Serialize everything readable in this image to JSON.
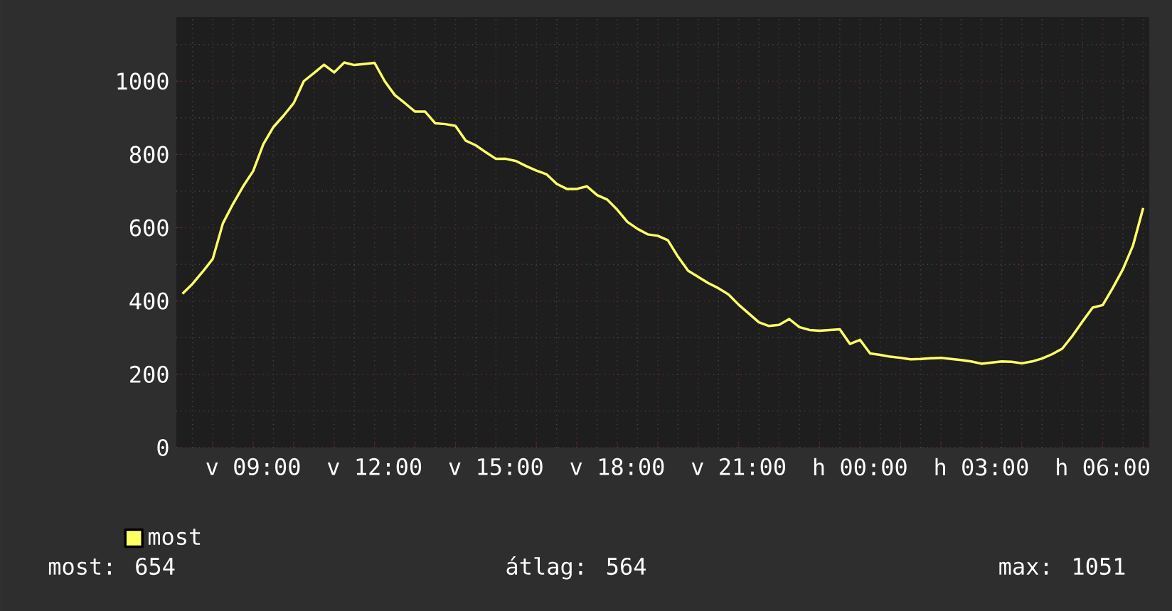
{
  "chart_data": {
    "type": "line",
    "categories": [
      null,
      null,
      null,
      null,
      null,
      null,
      null,
      "v 09:00",
      null,
      null,
      null,
      null,
      null,
      null,
      null,
      null,
      null,
      null,
      null,
      "v 12:00",
      null,
      null,
      null,
      null,
      null,
      null,
      null,
      null,
      null,
      null,
      null,
      "v 15:00",
      null,
      null,
      null,
      null,
      null,
      null,
      null,
      null,
      null,
      null,
      null,
      "v 18:00",
      null,
      null,
      null,
      null,
      null,
      null,
      null,
      null,
      null,
      null,
      null,
      "v 21:00",
      null,
      null,
      null,
      null,
      null,
      null,
      null,
      null,
      null,
      null,
      null,
      "h 00:00",
      null,
      null,
      null,
      null,
      null,
      null,
      null,
      null,
      null,
      null,
      null,
      "h 03:00",
      null,
      null,
      null,
      null,
      null,
      null,
      null,
      null,
      null,
      null,
      null,
      "h 06:00",
      null,
      null,
      null,
      null
    ],
    "series": [
      {
        "name": "most",
        "color": "#ffff66",
        "values": [
          420,
          447,
          480,
          515,
          612,
          665,
          713,
          755,
          828,
          875,
          906,
          940,
          1000,
          1022,
          1045,
          1024,
          1051,
          1044,
          1047,
          1050,
          1000,
          962,
          940,
          917,
          917,
          885,
          883,
          878,
          838,
          825,
          806,
          788,
          788,
          782,
          768,
          756,
          746,
          720,
          706,
          706,
          713,
          689,
          677,
          649,
          616,
          597,
          582,
          578,
          566,
          521,
          483,
          466,
          449,
          435,
          418,
          390,
          366,
          342,
          332,
          335,
          351,
          329,
          321,
          319,
          321,
          323,
          283,
          294,
          257,
          253,
          248,
          245,
          241,
          242,
          244,
          245,
          242,
          239,
          235,
          229,
          232,
          235,
          234,
          230,
          235,
          243,
          255,
          270,
          305,
          344,
          382,
          389,
          436,
          487,
          552,
          654
        ]
      }
    ],
    "ylim": [
      0,
      1175
    ],
    "yticks": [
      0,
      200,
      400,
      600,
      800,
      1000
    ],
    "grid": true,
    "legend": "bottom left",
    "marker": "none",
    "line_style": "solid",
    "annotations": [
      "most: 654",
      "átlag: 564",
      "max: 1051"
    ]
  }
}
